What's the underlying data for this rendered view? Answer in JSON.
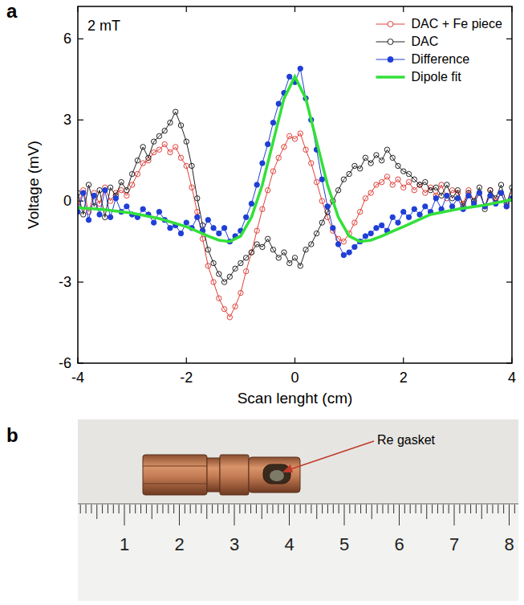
{
  "chart_data": {
    "type": "line",
    "panel_label": "a",
    "annotations": [
      "2 mT"
    ],
    "x_label": "Scan lenght (cm)",
    "y_label": "Voltage (mV)",
    "xlim": [
      -4,
      4
    ],
    "xticks": [
      -4,
      -2,
      0,
      2,
      4
    ],
    "ylim": [
      -6,
      7.2
    ],
    "yticks": [
      -6,
      -3,
      0,
      3,
      6
    ],
    "grid": false,
    "legend": "top-right",
    "x": [
      -4.0,
      -3.9,
      -3.8,
      -3.7,
      -3.6,
      -3.5,
      -3.4,
      -3.3,
      -3.2,
      -3.1,
      -3.0,
      -2.9,
      -2.8,
      -2.7,
      -2.6,
      -2.5,
      -2.4,
      -2.3,
      -2.2,
      -2.1,
      -2.0,
      -1.9,
      -1.8,
      -1.7,
      -1.6,
      -1.5,
      -1.4,
      -1.3,
      -1.2,
      -1.1,
      -1.0,
      -0.9,
      -0.8,
      -0.7,
      -0.6,
      -0.5,
      -0.4,
      -0.3,
      -0.2,
      -0.1,
      0.0,
      0.1,
      0.2,
      0.3,
      0.4,
      0.5,
      0.6,
      0.7,
      0.8,
      0.9,
      1.0,
      1.1,
      1.2,
      1.3,
      1.4,
      1.5,
      1.6,
      1.7,
      1.8,
      1.9,
      2.0,
      2.1,
      2.2,
      2.3,
      2.4,
      2.5,
      2.6,
      2.7,
      2.8,
      2.9,
      3.0,
      3.1,
      3.2,
      3.3,
      3.4,
      3.5,
      3.6,
      3.7,
      3.8,
      3.9,
      4.0
    ],
    "series": [
      {
        "name": "DAC + Fe piece",
        "color": "#e0413a",
        "marker": "open-circle",
        "line_style": "solid",
        "values": [
          -0.2,
          0.4,
          -0.4,
          0.3,
          -0.1,
          0.5,
          0.0,
          0.3,
          0.4,
          0.2,
          0.6,
          1.0,
          1.4,
          1.5,
          1.8,
          1.9,
          2.1,
          1.8,
          2.0,
          1.6,
          1.3,
          0.5,
          -0.4,
          -1.4,
          -2.4,
          -3.0,
          -3.6,
          -4.0,
          -4.3,
          -3.9,
          -3.4,
          -2.6,
          -1.9,
          -1.1,
          -0.3,
          0.4,
          1.1,
          1.6,
          2.0,
          2.4,
          2.3,
          2.5,
          1.9,
          1.4,
          0.7,
          0.0,
          -0.6,
          -1.1,
          -1.4,
          -1.5,
          -1.2,
          -0.8,
          -0.4,
          0.1,
          0.3,
          0.6,
          0.7,
          0.9,
          0.6,
          0.8,
          0.5,
          0.7,
          0.4,
          0.6,
          0.3,
          0.5,
          0.2,
          0.6,
          0.1,
          0.4,
          0.3,
          -0.1,
          0.4,
          0.0,
          0.3,
          -0.2,
          0.4,
          0.0,
          0.3,
          -0.2,
          0.2
        ]
      },
      {
        "name": "DAC",
        "color": "#222222",
        "marker": "open-circle",
        "line_style": "solid",
        "values": [
          0.3,
          -0.5,
          0.6,
          -0.2,
          0.4,
          -0.6,
          0.5,
          0.2,
          0.7,
          0.4,
          1.0,
          1.5,
          2.0,
          1.6,
          2.2,
          2.4,
          2.6,
          2.9,
          3.3,
          2.8,
          2.2,
          1.3,
          0.1,
          -0.9,
          -1.8,
          -2.3,
          -2.7,
          -3.0,
          -2.8,
          -2.5,
          -2.3,
          -2.1,
          -1.9,
          -1.6,
          -1.7,
          -1.4,
          -1.8,
          -2.1,
          -1.9,
          -2.3,
          -2.1,
          -2.4,
          -1.8,
          -1.6,
          -1.2,
          -0.8,
          -0.4,
          0.0,
          0.4,
          0.8,
          1.0,
          1.3,
          1.2,
          1.6,
          1.4,
          1.7,
          1.5,
          1.9,
          1.6,
          1.3,
          1.1,
          1.0,
          0.8,
          0.6,
          0.7,
          0.4,
          0.5,
          0.2,
          0.6,
          0.1,
          0.4,
          -0.2,
          0.3,
          0.0,
          0.5,
          -0.3,
          0.4,
          0.1,
          0.6,
          -0.1,
          0.5
        ]
      },
      {
        "name": "Difference",
        "color": "#1f3fd6",
        "marker": "filled-circle",
        "line_style": "solid",
        "values": [
          -0.4,
          0.3,
          -0.7,
          0.2,
          -0.5,
          0.4,
          -0.6,
          0.1,
          -0.4,
          -0.2,
          -0.5,
          -0.6,
          -0.3,
          -0.5,
          -0.8,
          -0.4,
          -0.7,
          -1.0,
          -0.9,
          -1.2,
          -0.8,
          -1.0,
          -0.6,
          -1.1,
          -0.7,
          -1.0,
          -1.2,
          -1.0,
          -1.5,
          -1.3,
          -1.1,
          -0.6,
          -0.1,
          0.6,
          1.4,
          2.1,
          2.9,
          3.6,
          4.0,
          4.6,
          4.4,
          4.9,
          3.8,
          3.0,
          1.9,
          0.8,
          -0.2,
          -1.0,
          -1.6,
          -2.0,
          -1.9,
          -1.7,
          -1.5,
          -1.3,
          -1.2,
          -1.0,
          -0.9,
          -1.1,
          -0.6,
          -0.8,
          -0.4,
          -0.6,
          -0.3,
          -0.5,
          -0.2,
          -0.4,
          0.1,
          -0.3,
          0.2,
          -0.2,
          0.1,
          -0.3,
          0.2,
          -0.1,
          0.3,
          -0.2,
          0.2,
          -0.1,
          0.3,
          -0.2,
          0.1
        ]
      },
      {
        "name": "Dipole fit",
        "color": "#33e03a",
        "marker": "none",
        "line_style": "solid",
        "x": [
          -4,
          -3.5,
          -3,
          -2.5,
          -2,
          -1.8,
          -1.6,
          -1.4,
          -1.2,
          -1.0,
          -0.8,
          -0.6,
          -0.4,
          -0.2,
          0,
          0.2,
          0.4,
          0.6,
          0.8,
          1.0,
          1.2,
          1.4,
          1.6,
          1.8,
          2,
          2.5,
          3,
          3.5,
          4
        ],
        "values": [
          -0.25,
          -0.32,
          -0.45,
          -0.65,
          -0.95,
          -1.12,
          -1.3,
          -1.45,
          -1.5,
          -1.3,
          -0.6,
          0.6,
          2.2,
          3.8,
          4.6,
          3.8,
          2.2,
          0.6,
          -0.6,
          -1.3,
          -1.5,
          -1.45,
          -1.3,
          -1.12,
          -0.95,
          -0.5,
          -0.3,
          -0.15,
          0.05
        ]
      }
    ]
  },
  "panel_b": {
    "panel_label": "b",
    "annotation": "Re gasket",
    "ruler_labels": [
      1,
      2,
      3,
      4,
      5,
      6,
      7,
      8
    ]
  }
}
